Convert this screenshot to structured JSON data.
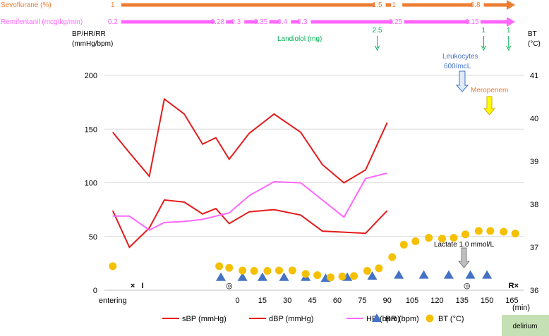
{
  "chart_data": {
    "type": "line",
    "x_ticks": [
      {
        "label": "entering",
        "t": -75
      },
      {
        "label": "0",
        "t": 0
      },
      {
        "label": "15",
        "t": 15
      },
      {
        "label": "30",
        "t": 30
      },
      {
        "label": "45",
        "t": 45
      },
      {
        "label": "60",
        "t": 60
      },
      {
        "label": "75",
        "t": 75
      },
      {
        "label": "90",
        "t": 90
      },
      {
        "label": "105",
        "t": 105
      },
      {
        "label": "120",
        "t": 120
      },
      {
        "label": "135",
        "t": 135
      },
      {
        "label": "150",
        "t": 150
      },
      {
        "label": "165",
        "t": 165
      }
    ],
    "x_unit": "(min)",
    "xlim": [
      -80,
      172
    ],
    "y_left": {
      "label_line1": "BP/HR/RR",
      "label_line2": "(mmHg/bpm)",
      "ylim": [
        0,
        200
      ],
      "ticks": [
        0,
        50,
        100,
        150,
        200
      ]
    },
    "y_right": {
      "label_line1": "BT",
      "label_line2": "(°C)",
      "ylim": [
        36,
        41
      ],
      "ticks": [
        36,
        37,
        38,
        39,
        40,
        41
      ]
    },
    "series": [
      {
        "name": "sBP (mmHg)",
        "axis": "left",
        "color": "#e31b1b",
        "kind": "line",
        "t": [
          -75,
          -65,
          -53,
          -44,
          -32,
          -21,
          -13,
          -5,
          7,
          22,
          38,
          51,
          64,
          77,
          90
        ],
        "values": [
          147,
          128,
          106,
          178,
          164,
          136,
          142,
          122,
          146,
          164,
          147,
          117,
          100,
          112,
          156
        ]
      },
      {
        "name": "dBP (mmHg)",
        "axis": "left",
        "color": "#e31b1b",
        "kind": "line",
        "t": [
          -75,
          -65,
          -53,
          -44,
          -32,
          -21,
          -13,
          -5,
          7,
          22,
          38,
          51,
          64,
          77,
          90
        ],
        "values": [
          74,
          40,
          58,
          84,
          82,
          71,
          76,
          62,
          73,
          75,
          70,
          55,
          54,
          53,
          74
        ]
      },
      {
        "name": "HR (bpm)",
        "axis": "left",
        "color": "#ff66ff",
        "kind": "line",
        "t": [
          -75,
          -65,
          -53,
          -44,
          -32,
          -21,
          -13,
          -5,
          7,
          22,
          38,
          51,
          64,
          77,
          90
        ],
        "values": [
          69,
          69,
          56,
          63,
          64,
          66,
          69,
          72,
          88,
          101,
          100,
          84,
          68,
          104,
          109
        ]
      },
      {
        "name": "RR (bpm)",
        "axis": "left",
        "color": "#4472c4",
        "kind": "triangle",
        "t": [
          -10,
          3,
          15,
          28,
          41,
          53,
          66,
          81,
          97,
          112,
          127,
          140,
          150
        ],
        "values": [
          12,
          12,
          12,
          12,
          12,
          11,
          12,
          13,
          14,
          14,
          14,
          14,
          14
        ]
      },
      {
        "name": "BT (°C)",
        "axis": "right",
        "color": "#f5c000",
        "kind": "circle",
        "t": [
          -75,
          -11,
          -5,
          3,
          10,
          18,
          25,
          33,
          41,
          48,
          56,
          63,
          70,
          78,
          85,
          93,
          100,
          107,
          115,
          123,
          130,
          137,
          145,
          152,
          160,
          167
        ],
        "values": [
          36.56,
          36.56,
          36.52,
          36.46,
          36.45,
          36.45,
          36.46,
          36.46,
          36.38,
          36.35,
          36.3,
          36.32,
          36.33,
          36.45,
          36.51,
          36.77,
          37.06,
          37.14,
          37.22,
          37.2,
          37.22,
          37.3,
          37.38,
          37.38,
          37.36,
          37.32
        ]
      }
    ],
    "drugs": [
      {
        "label": "Sevoflurane (%)",
        "color": "#ed7d31",
        "values": [
          {
            "text": "1",
            "t": -75
          },
          {
            "text": "1.5",
            "t": 84
          },
          {
            "text": "1",
            "t": 94
          },
          {
            "text": "0.8",
            "t": 143
          }
        ]
      },
      {
        "label": "Remifentanil (mcg/kg/min)",
        "color": "#ff66ff",
        "values": [
          {
            "text": "0.2",
            "t": -75
          },
          {
            "text": "0.28",
            "t": -12
          },
          {
            "text": "0.3",
            "t": -1
          },
          {
            "text": "0.35",
            "t": 14
          },
          {
            "text": "0.4",
            "t": 27
          },
          {
            "text": "0.3",
            "t": 39
          },
          {
            "text": "0.25",
            "t": 95
          },
          {
            "text": "0.15",
            "t": 141
          }
        ]
      }
    ],
    "annotations": {
      "landiolol_label": "Landiolol (mg)",
      "landiolol_doses": [
        {
          "text": "2.5",
          "t": 84
        },
        {
          "text": "1",
          "t": 148
        },
        {
          "text": "1",
          "t": 163
        }
      ],
      "leukocytes_line1": "Leukocytes",
      "leukocytes_line2": "600/mcL",
      "meropenem": "Meropenem",
      "lactate": "Lactate 1.0 mmol/L",
      "markers": [
        {
          "text": "×",
          "t": -63
        },
        {
          "text": "I",
          "t": -57
        },
        {
          "text": "◎",
          "t": -5
        },
        {
          "text": "◎",
          "t": 138
        },
        {
          "text": "R×",
          "t": 166
        }
      ],
      "delirium": "delirium"
    },
    "colors": {
      "landiolol": "#00b050",
      "leukocytes": "#4472c4",
      "meropenem": "#ed7d31",
      "meropenem_arrow": "#ffff00",
      "lactate_arrow": "#bfbfbf",
      "delirium_bg": "#c5e0b4",
      "grid": "#d9d9d9"
    }
  }
}
